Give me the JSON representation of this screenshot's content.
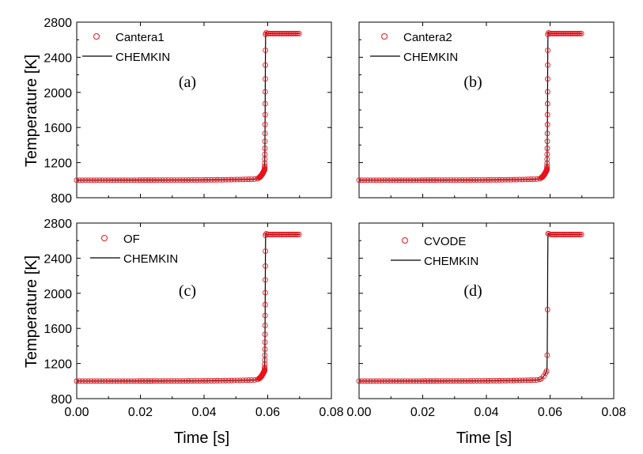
{
  "figure": {
    "ylabel": "Temperature [K]",
    "xlabel": "Time [s]"
  },
  "colors": {
    "marker": "#e8141c",
    "line": "#000000",
    "axes": "#000000"
  },
  "chart_data": [
    {
      "type": "line",
      "panel": "(a)",
      "xlim": [
        0.0,
        0.08
      ],
      "ylim": [
        800,
        2800
      ],
      "xticks": [
        "0.00",
        "0.02",
        "0.04",
        "0.06",
        "0.08"
      ],
      "yticks": [
        "800",
        "1200",
        "1600",
        "2000",
        "2400",
        "2800"
      ],
      "legend": [
        "Cantera1",
        "CHEMKIN"
      ],
      "series": [
        {
          "name": "Cantera1",
          "style": "open-circle-markers",
          "ignition_time": 0.0593,
          "initial_temp": 1000,
          "final_temp": 2670,
          "end_time": 0.07
        },
        {
          "name": "CHEMKIN",
          "style": "solid-line",
          "ignition_time": 0.0593,
          "initial_temp": 1000,
          "final_temp": 2670,
          "end_time": 0.07
        }
      ]
    },
    {
      "type": "line",
      "panel": "(b)",
      "xlim": [
        0.0,
        0.08
      ],
      "ylim": [
        800,
        2800
      ],
      "xticks": [
        "0.00",
        "0.02",
        "0.04",
        "0.06",
        "0.08"
      ],
      "yticks": [],
      "legend": [
        "Cantera2",
        "CHEMKIN"
      ],
      "series": [
        {
          "name": "Cantera2",
          "style": "open-circle-markers",
          "ignition_time": 0.0593,
          "initial_temp": 1000,
          "final_temp": 2670,
          "end_time": 0.07
        },
        {
          "name": "CHEMKIN",
          "style": "solid-line",
          "ignition_time": 0.0593,
          "initial_temp": 1000,
          "final_temp": 2670,
          "end_time": 0.07
        }
      ]
    },
    {
      "type": "line",
      "panel": "(c)",
      "xlim": [
        0.0,
        0.08
      ],
      "ylim": [
        800,
        2800
      ],
      "xticks": [
        "0.00",
        "0.02",
        "0.04",
        "0.06",
        "0.08"
      ],
      "yticks": [
        "800",
        "1200",
        "1600",
        "2000",
        "2400",
        "2800"
      ],
      "legend": [
        "OF",
        "CHEMKIN"
      ],
      "series": [
        {
          "name": "OF",
          "style": "open-circle-markers",
          "ignition_time": 0.0593,
          "initial_temp": 1000,
          "final_temp": 2670,
          "end_time": 0.07
        },
        {
          "name": "CHEMKIN",
          "style": "solid-line",
          "ignition_time": 0.0593,
          "initial_temp": 1000,
          "final_temp": 2670,
          "end_time": 0.07
        }
      ]
    },
    {
      "type": "line",
      "panel": "(d)",
      "xlim": [
        0.0,
        0.08
      ],
      "ylim": [
        800,
        2800
      ],
      "xticks": [
        "0.00",
        "0.02",
        "0.04",
        "0.06",
        "0.08"
      ],
      "yticks": [],
      "legend": [
        "CVODE",
        "CHEMKIN"
      ],
      "series": [
        {
          "name": "CVODE",
          "style": "open-circle-markers",
          "ignition_time": 0.0593,
          "initial_temp": 1000,
          "final_temp": 2670,
          "end_time": 0.07,
          "sparse_jump": true
        },
        {
          "name": "CHEMKIN",
          "style": "solid-line",
          "ignition_time": 0.0593,
          "initial_temp": 1000,
          "final_temp": 2670,
          "end_time": 0.07
        }
      ]
    }
  ]
}
